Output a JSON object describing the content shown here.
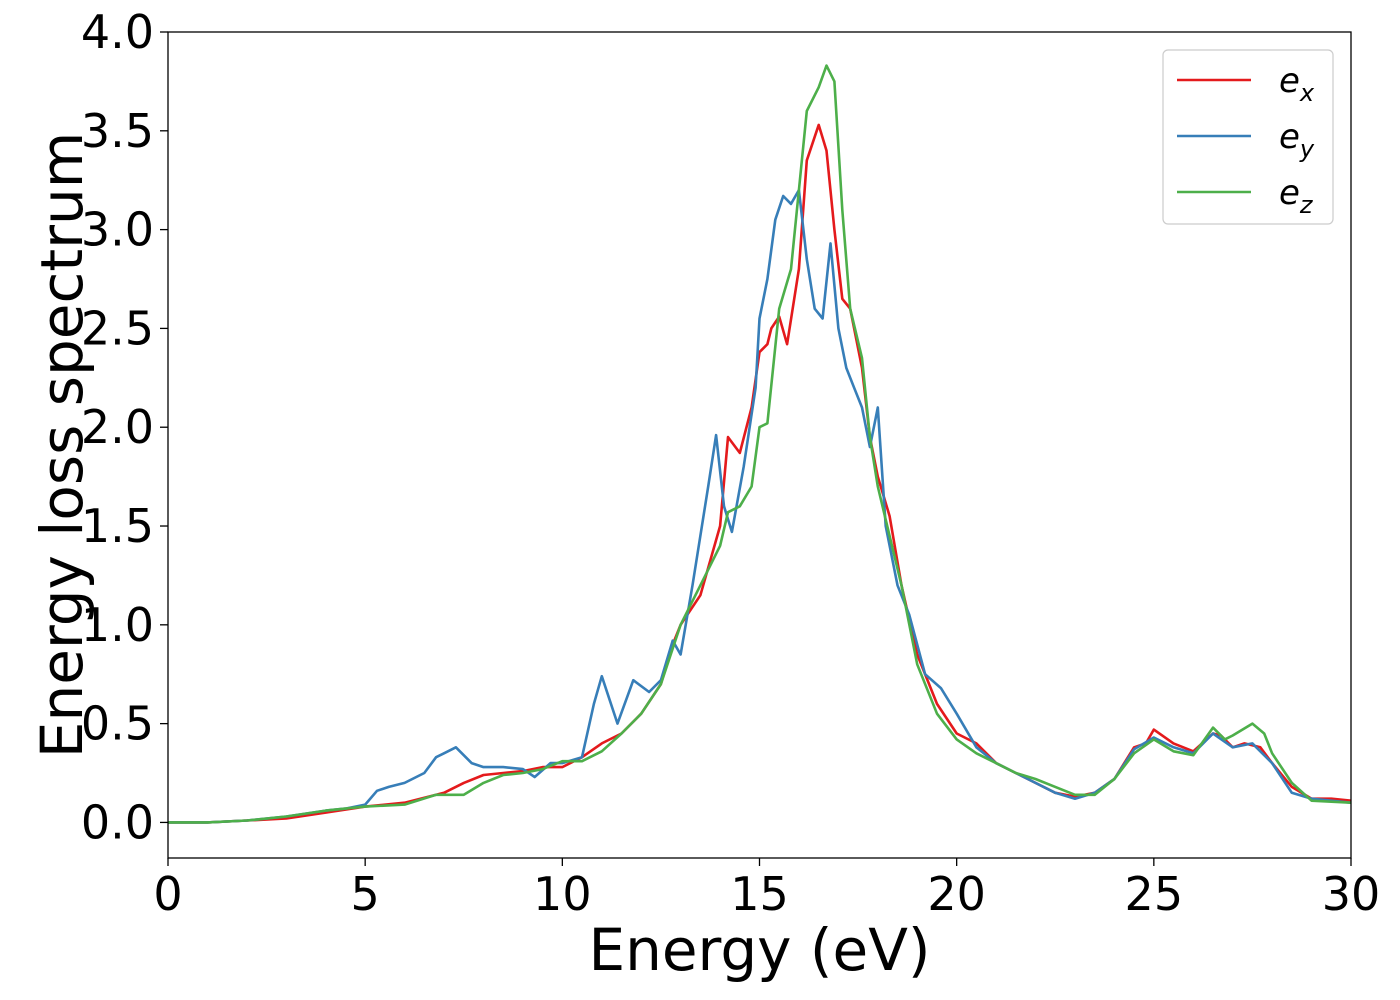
{
  "chart_data": {
    "type": "line",
    "xlabel": "Energy (eV)",
    "ylabel": "Energy loss spectrum",
    "xlim": [
      0,
      30
    ],
    "ylim": [
      -0.18,
      4.0
    ],
    "xticks": [
      0,
      5,
      10,
      15,
      20,
      25,
      30
    ],
    "xtick_labels": [
      "0",
      "5",
      "10",
      "15",
      "20",
      "25",
      "30"
    ],
    "yticks": [
      0.0,
      0.5,
      1.0,
      1.5,
      2.0,
      2.5,
      3.0,
      3.5,
      4.0
    ],
    "ytick_labels": [
      "0.0",
      "0.5",
      "1.0",
      "1.5",
      "2.0",
      "2.5",
      "3.0",
      "3.5",
      "4.0"
    ],
    "grid": false,
    "legend_position": "top-right",
    "series": [
      {
        "name": "e",
        "subscript": "x",
        "color": "#e41a1c",
        "x": [
          0,
          1,
          2,
          3,
          4,
          5,
          6,
          7,
          7.5,
          8,
          8.5,
          9,
          9.5,
          10,
          10.5,
          11,
          11.5,
          12,
          12.5,
          12.8,
          13,
          13.5,
          14,
          14.2,
          14.5,
          14.8,
          15,
          15.2,
          15.3,
          15.5,
          15.7,
          16,
          16.2,
          16.5,
          16.7,
          16.9,
          17.1,
          17.3,
          17.6,
          17.8,
          18,
          18.3,
          18.6,
          19,
          19.5,
          20,
          20.5,
          21,
          21.5,
          22,
          22.5,
          23,
          23.5,
          24,
          24.5,
          24.8,
          25,
          25.5,
          26,
          26.5,
          26.7,
          27,
          27.3,
          27.7,
          28,
          28.5,
          29,
          29.5,
          30
        ],
        "y": [
          0,
          0,
          0.01,
          0.02,
          0.05,
          0.08,
          0.1,
          0.15,
          0.2,
          0.24,
          0.25,
          0.26,
          0.28,
          0.28,
          0.33,
          0.4,
          0.45,
          0.55,
          0.7,
          0.9,
          1.0,
          1.15,
          1.5,
          1.95,
          1.87,
          2.1,
          2.38,
          2.42,
          2.5,
          2.56,
          2.42,
          2.8,
          3.35,
          3.53,
          3.4,
          3.0,
          2.65,
          2.6,
          2.3,
          1.95,
          1.75,
          1.55,
          1.2,
          0.85,
          0.6,
          0.45,
          0.4,
          0.3,
          0.25,
          0.2,
          0.15,
          0.13,
          0.15,
          0.22,
          0.38,
          0.4,
          0.47,
          0.4,
          0.36,
          0.45,
          0.44,
          0.38,
          0.4,
          0.38,
          0.3,
          0.18,
          0.12,
          0.12,
          0.11
        ]
      },
      {
        "name": "e",
        "subscript": "y",
        "color": "#377eb8",
        "x": [
          0,
          1,
          2,
          3,
          4,
          4.5,
          5,
          5.3,
          5.6,
          6,
          6.5,
          6.8,
          7,
          7.3,
          7.7,
          8,
          8.5,
          9,
          9.3,
          9.7,
          10,
          10.5,
          10.8,
          11,
          11.4,
          11.8,
          12.2,
          12.5,
          12.8,
          13,
          13.3,
          13.7,
          13.9,
          14.1,
          14.3,
          14.6,
          14.9,
          15,
          15.2,
          15.4,
          15.6,
          15.8,
          16,
          16.2,
          16.4,
          16.6,
          16.8,
          17,
          17.2,
          17.4,
          17.6,
          17.8,
          18,
          18.2,
          18.5,
          18.8,
          19.2,
          19.6,
          20,
          20.5,
          21,
          21.5,
          22,
          22.5,
          23,
          23.5,
          24,
          24.5,
          25,
          25.5,
          26,
          26.5,
          27,
          27.5,
          28,
          28.5,
          29,
          30
        ],
        "y": [
          0,
          0,
          0.01,
          0.03,
          0.06,
          0.07,
          0.09,
          0.16,
          0.18,
          0.2,
          0.25,
          0.33,
          0.35,
          0.38,
          0.3,
          0.28,
          0.28,
          0.27,
          0.23,
          0.3,
          0.3,
          0.33,
          0.6,
          0.74,
          0.5,
          0.72,
          0.66,
          0.72,
          0.92,
          0.85,
          1.2,
          1.7,
          1.96,
          1.6,
          1.47,
          1.8,
          2.2,
          2.55,
          2.75,
          3.05,
          3.17,
          3.13,
          3.2,
          2.85,
          2.6,
          2.55,
          2.93,
          2.5,
          2.3,
          2.2,
          2.1,
          1.9,
          2.1,
          1.5,
          1.2,
          1.05,
          0.75,
          0.68,
          0.55,
          0.38,
          0.3,
          0.25,
          0.2,
          0.15,
          0.12,
          0.15,
          0.22,
          0.37,
          0.43,
          0.38,
          0.35,
          0.45,
          0.38,
          0.4,
          0.3,
          0.15,
          0.12,
          0.1
        ]
      },
      {
        "name": "e",
        "subscript": "z",
        "color": "#4daf4a",
        "x": [
          0,
          1,
          2,
          3,
          4,
          5,
          6,
          6.8,
          7.5,
          8,
          8.5,
          9,
          9.5,
          10,
          10.5,
          11,
          11.5,
          12,
          12.5,
          13,
          13.5,
          14,
          14.2,
          14.5,
          14.8,
          15,
          15.2,
          15.5,
          15.8,
          16,
          16.2,
          16.5,
          16.7,
          16.9,
          17.1,
          17.3,
          17.6,
          17.8,
          18,
          18.3,
          18.6,
          19,
          19.5,
          20,
          20.5,
          21,
          21.5,
          22,
          22.5,
          23,
          23.5,
          24,
          24.5,
          25,
          25.5,
          26,
          26.5,
          26.8,
          27,
          27.5,
          27.8,
          28,
          28.5,
          29,
          30
        ],
        "y": [
          0,
          0,
          0.01,
          0.03,
          0.06,
          0.08,
          0.09,
          0.14,
          0.14,
          0.2,
          0.24,
          0.25,
          0.27,
          0.31,
          0.31,
          0.36,
          0.45,
          0.55,
          0.7,
          1.0,
          1.2,
          1.4,
          1.57,
          1.6,
          1.7,
          2.0,
          2.02,
          2.6,
          2.8,
          3.2,
          3.6,
          3.72,
          3.83,
          3.75,
          3.1,
          2.6,
          2.35,
          1.95,
          1.7,
          1.45,
          1.2,
          0.8,
          0.55,
          0.42,
          0.35,
          0.3,
          0.25,
          0.22,
          0.18,
          0.14,
          0.14,
          0.22,
          0.35,
          0.42,
          0.36,
          0.34,
          0.48,
          0.42,
          0.44,
          0.5,
          0.45,
          0.35,
          0.2,
          0.11,
          0.1
        ]
      }
    ]
  }
}
